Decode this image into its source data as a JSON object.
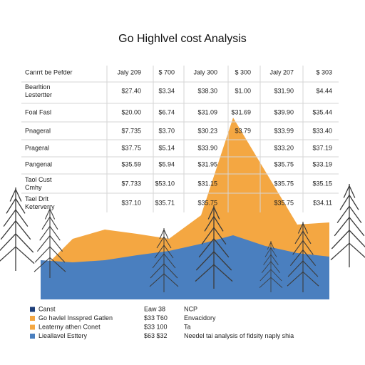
{
  "title": "Go Highlvel cost Analysis",
  "table": {
    "header": [
      "Canrrt be Pefder",
      "Jaly 209",
      "$ 700",
      "Jaly 300",
      "$ 300",
      "Jaly 207",
      "$ 303"
    ],
    "rows": [
      [
        [
          "Bearltion",
          "Lestertter"
        ],
        "$27.40",
        "$3.34",
        "$38.30",
        "$1.00",
        "$31.90",
        "$4.44"
      ],
      [
        [
          "Foal Fasl"
        ],
        "$20.00",
        "$6.74",
        "$31.09",
        "$31.69",
        "$39.90",
        "$35.44"
      ],
      [
        [
          "Pnageral"
        ],
        "$7.735",
        "$3.70",
        "$30.23",
        "$3.79",
        "$33.99",
        "$33.40"
      ],
      [
        [
          "Prageral"
        ],
        "$37.75",
        "$5.14",
        "$33.90",
        null,
        "$33.20",
        "$37.19"
      ],
      [
        [
          "Pangenal"
        ],
        "$35.59",
        "$5.94",
        "$31.95",
        null,
        "$35.75",
        "$33.19"
      ],
      [
        [
          "Taol Cust",
          "Cmhy"
        ],
        "$7.733",
        "$53.10",
        "$31.15",
        null,
        "$35.75",
        "$35.15"
      ],
      [
        [
          "Tael Drlt",
          "Keterverry"
        ],
        "$37.10",
        "$35.71",
        "$35.75",
        null,
        "$35.75",
        "$34.11"
      ]
    ]
  },
  "chart_data": {
    "type": "area",
    "series": [
      {
        "color": "#f4a742",
        "values": [
          40,
          85,
          98,
          92,
          85,
          118,
          255,
          180,
          105,
          108
        ]
      },
      {
        "color": "#4a7fbf",
        "values": [
          55,
          52,
          55,
          62,
          68,
          78,
          90,
          75,
          65,
          60
        ]
      }
    ]
  },
  "legend": [
    {
      "color": "#1f3f7a",
      "cells": [
        "Canst",
        "Eaw 38",
        "NCP"
      ]
    },
    {
      "color": "#f4a742",
      "cells": [
        "Go havlel Insspred Gatlen",
        "$33 T60",
        "Envacidory"
      ]
    },
    {
      "color": "#f4a742",
      "cells": [
        "Leaterny athen Conet",
        "$33 100",
        "Ta"
      ]
    },
    {
      "color": "#4a7fbf",
      "cells": [
        "Lieallavel Esttery",
        "$63 $32",
        "Needel tai analysis of fidsity naply shia"
      ]
    }
  ]
}
